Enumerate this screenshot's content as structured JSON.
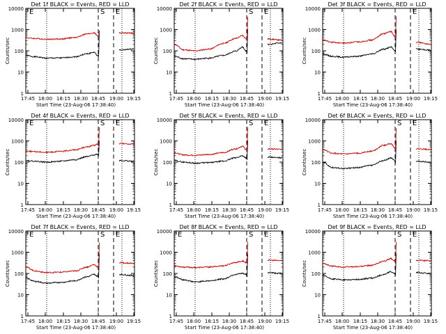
{
  "chart_data": [
    {
      "type": "line",
      "title": "Det 1f BLACK = Events, RED = LLD",
      "ylabel": "Counts/sec",
      "xlabel": "Start Time (23-Aug-06 17:38:40)",
      "yscale": "log",
      "ylim": [
        1,
        10000
      ],
      "yticks": [
        "1",
        "10",
        "100",
        "1000",
        "10000"
      ],
      "xticks": [
        "17:45",
        "18:00",
        "18:15",
        "18:30",
        "18:45",
        "19:00",
        "19:15"
      ],
      "markers": [
        {
          "label": "E"
        },
        {
          "label": "S"
        },
        {
          "label": "E"
        }
      ],
      "series": [
        {
          "color": "#000000",
          "values": [
            60,
            52,
            45,
            46,
            52,
            72,
            85,
            60,
            50,
            900,
            110,
            120
          ]
        },
        {
          "color": "#cc0000",
          "values": [
            410,
            380,
            350,
            360,
            420,
            620,
            700,
            520,
            480,
            950,
            700,
            680
          ]
        }
      ]
    },
    {
      "type": "line",
      "title": "Det 2f BLACK = Events, RED = LLD",
      "ylabel": "Counts/sec",
      "xlabel": "Start Time (23-Aug-06 17:38:40)",
      "yscale": "log",
      "ylim": [
        1,
        10000
      ],
      "yticks": [
        "1",
        "10",
        "100",
        "1000",
        "10000"
      ],
      "xticks": [
        "17:45",
        "18:00",
        "18:15",
        "18:30",
        "18:45",
        "19:00",
        "19:15"
      ],
      "markers": [
        {
          "label": "S"
        },
        {
          "label": "E"
        }
      ],
      "series": [
        {
          "color": "#000000",
          "values": [
            55,
            42,
            40,
            45,
            60,
            95,
            150,
            100,
            80,
            1100,
            200,
            240
          ]
        },
        {
          "color": "#cc0000",
          "values": [
            200,
            110,
            100,
            120,
            220,
            380,
            520,
            380,
            300,
            4000,
            360,
            320
          ]
        }
      ]
    },
    {
      "type": "line",
      "title": "Det 3f BLACK = Events, RED = LLD",
      "ylabel": "Counts/sec",
      "xlabel": "Start Time (23-Aug-06 17:38:40)",
      "yscale": "log",
      "ylim": [
        1,
        10000
      ],
      "yticks": [
        "1",
        "10",
        "100",
        "1000",
        "10000"
      ],
      "xticks": [
        "17:45",
        "18:00",
        "18:15",
        "18:30",
        "18:45",
        "19:00",
        "19:15"
      ],
      "markers": [
        {
          "label": "E"
        }
      ],
      "series": [
        {
          "color": "#000000",
          "values": [
            70,
            55,
            50,
            55,
            70,
            120,
            150,
            110,
            90,
            1000,
            120,
            110
          ]
        },
        {
          "color": "#cc0000",
          "values": [
            320,
            250,
            230,
            260,
            320,
            650,
            800,
            500,
            400,
            4200,
            260,
            200
          ]
        }
      ]
    },
    {
      "type": "line",
      "title": "Det 4f BLACK = Events, RED = LLD",
      "ylabel": "Counts/sec",
      "xlabel": "Start Time (23-Aug-06 17:38:40)",
      "yscale": "log",
      "ylim": [
        1,
        10000
      ],
      "yticks": [
        "1",
        "10",
        "100",
        "1000",
        "10000"
      ],
      "xticks": [
        "17:45",
        "18:00",
        "18:15",
        "18:30",
        "18:45",
        "19:00",
        "19:15"
      ],
      "markers": [
        {
          "label": "E"
        },
        {
          "label": "S"
        },
        {
          "label": "E"
        }
      ],
      "series": [
        {
          "color": "#000000",
          "values": [
            120,
            110,
            100,
            110,
            130,
            180,
            220,
            240,
            200,
            1000,
            120,
            110
          ]
        },
        {
          "color": "#cc0000",
          "values": [
            340,
            310,
            290,
            320,
            380,
            520,
            620,
            700,
            600,
            4200,
            750,
            700
          ]
        }
      ]
    },
    {
      "type": "line",
      "title": "Det 5f BLACK = Events, RED = LLD",
      "ylabel": "Counts/sec",
      "xlabel": "Start Time (23-Aug-06 17:38:40)",
      "yscale": "log",
      "ylim": [
        1,
        10000
      ],
      "yticks": [
        "1",
        "10",
        "100",
        "1000",
        "10000"
      ],
      "xticks": [
        "17:45",
        "18:00",
        "18:15",
        "18:30",
        "18:45",
        "19:00",
        "19:15"
      ],
      "markers": [
        {
          "label": "S"
        },
        {
          "label": "E"
        }
      ],
      "series": [
        {
          "color": "#000000",
          "values": [
            120,
            100,
            90,
            95,
            110,
            160,
            200,
            160,
            130,
            1000,
            170,
            160
          ]
        },
        {
          "color": "#cc0000",
          "values": [
            270,
            220,
            210,
            230,
            280,
            420,
            560,
            400,
            320,
            4200,
            420,
            400
          ]
        }
      ]
    },
    {
      "type": "line",
      "title": "Det 6f BLACK = Events, RED = LLD",
      "ylabel": "Counts/sec",
      "xlabel": "Start Time (23-Aug-06 17:38:40)",
      "yscale": "log",
      "ylim": [
        1,
        10000
      ],
      "yticks": [
        "1",
        "10",
        "100",
        "1000",
        "10000"
      ],
      "xticks": [
        "17:45",
        "18:00",
        "18:15",
        "18:30",
        "18:45",
        "19:00",
        "19:15"
      ],
      "markers": [
        {
          "label": "S"
        },
        {
          "label": "E"
        }
      ],
      "series": [
        {
          "color": "#000000",
          "values": [
            100,
            55,
            50,
            55,
            70,
            120,
            160,
            120,
            90,
            1000,
            110,
            100
          ]
        },
        {
          "color": "#cc0000",
          "values": [
            400,
            260,
            240,
            260,
            330,
            620,
            750,
            500,
            400,
            4200,
            420,
            400
          ]
        }
      ]
    },
    {
      "type": "line",
      "title": "Det 7f BLACK = Events, RED = LLD",
      "ylabel": "Counts/sec",
      "xlabel": "Start Time (23-Aug-06 17:38:40)",
      "yscale": "log",
      "ylim": [
        1,
        10000
      ],
      "yticks": [
        "1",
        "10",
        "100",
        "1000",
        "10000"
      ],
      "xticks": [
        "17:45",
        "18:00",
        "18:15",
        "18:30",
        "18:45",
        "19:00",
        "19:15"
      ],
      "markers": [
        {
          "label": "E"
        },
        {
          "label": "S"
        },
        {
          "label": "E"
        }
      ],
      "series": [
        {
          "color": "#000000",
          "values": [
            60,
            42,
            35,
            38,
            45,
            70,
            90,
            75,
            60,
            900,
            90,
            80
          ]
        },
        {
          "color": "#cc0000",
          "values": [
            200,
            130,
            110,
            115,
            130,
            200,
            260,
            210,
            180,
            3000,
            320,
            300
          ]
        }
      ]
    },
    {
      "type": "line",
      "title": "Det 8f BLACK = Events, RED = LLD",
      "ylabel": "Counts/sec",
      "xlabel": "Start Time (23-Aug-06 17:38:40)",
      "yscale": "log",
      "ylim": [
        1,
        10000
      ],
      "yticks": [
        "1",
        "10",
        "100",
        "1000",
        "10000"
      ],
      "xticks": [
        "17:45",
        "18:00",
        "18:15",
        "18:30",
        "18:45",
        "19:00",
        "19:15"
      ],
      "markers": [
        {
          "label": "E"
        },
        {
          "label": "S"
        },
        {
          "label": "E"
        }
      ],
      "series": [
        {
          "color": "#000000",
          "values": [
            70,
            50,
            40,
            45,
            55,
            90,
            100,
            90,
            70,
            900,
            110,
            100
          ]
        },
        {
          "color": "#cc0000",
          "values": [
            230,
            200,
            190,
            200,
            230,
            330,
            380,
            330,
            300,
            3000,
            420,
            400
          ]
        }
      ]
    },
    {
      "type": "line",
      "title": "Det 9f BLACK = Events, RED = LLD",
      "ylabel": "Counts/sec",
      "xlabel": "Start Time (23-Aug-06 17:38:40)",
      "yscale": "log",
      "ylim": [
        1,
        10000
      ],
      "yticks": [
        "1",
        "10",
        "100",
        "1000",
        "10000"
      ],
      "xticks": [
        "17:45",
        "18:00",
        "18:15",
        "18:30",
        "18:45",
        "19:00",
        "19:15"
      ],
      "markers": [
        {
          "label": "S"
        },
        {
          "label": "E"
        }
      ],
      "series": [
        {
          "color": "#000000",
          "values": [
            80,
            55,
            50,
            52,
            60,
            90,
            120,
            100,
            80,
            900,
            110,
            100
          ]
        },
        {
          "color": "#cc0000",
          "values": [
            300,
            220,
            200,
            210,
            240,
            380,
            500,
            380,
            300,
            3000,
            420,
            400
          ]
        }
      ]
    }
  ]
}
